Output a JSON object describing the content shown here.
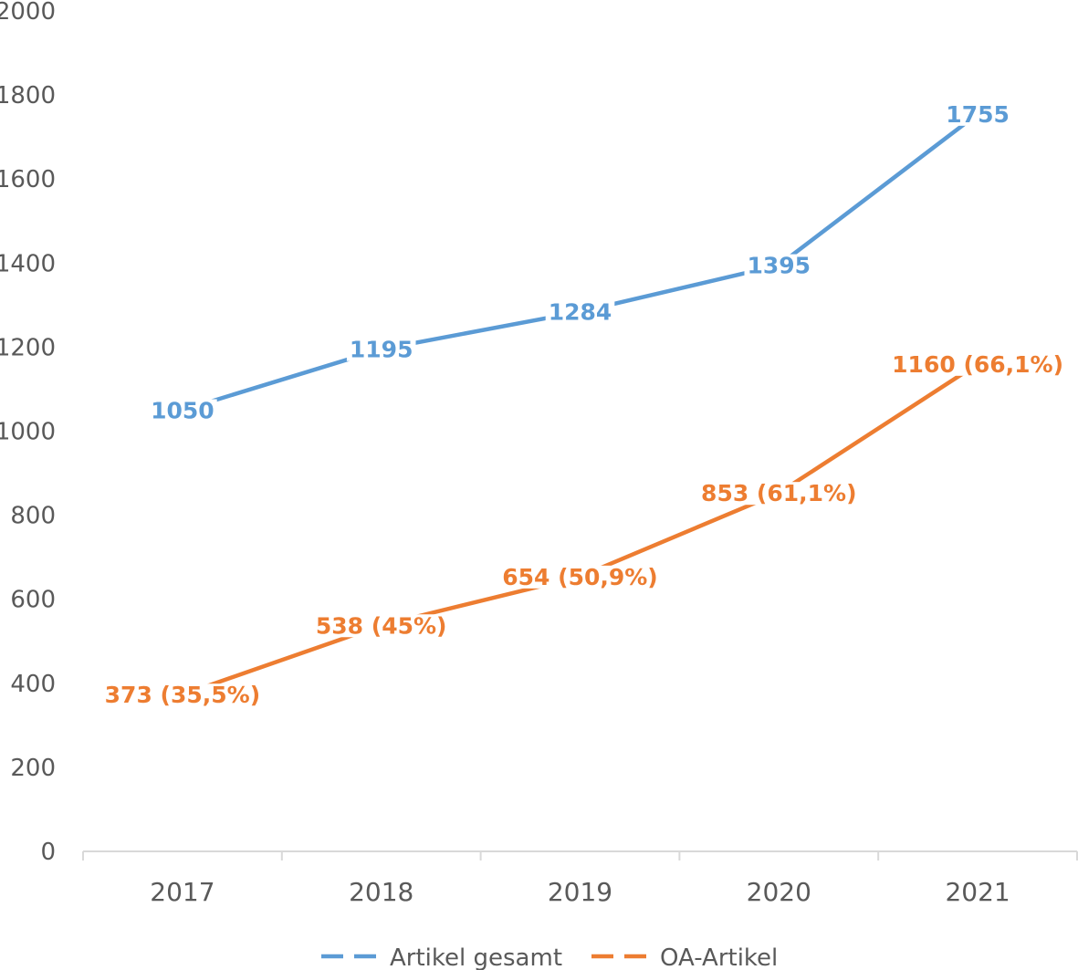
{
  "chart_data": {
    "type": "line",
    "categories": [
      "2017",
      "2018",
      "2019",
      "2020",
      "2021"
    ],
    "ylim": [
      0,
      2000
    ],
    "yticks": [
      "0",
      "200",
      "400",
      "600",
      "800",
      "1000",
      "1200",
      "1400",
      "1600",
      "1800",
      "2000"
    ],
    "grid": false,
    "legend": "bottom",
    "series": [
      {
        "name": "Artikel gesamt",
        "color": "#5b9bd5",
        "values": [
          1050,
          1195,
          1284,
          1395,
          1755
        ],
        "labels": [
          "1050",
          "1195",
          "1284",
          "1395",
          "1755"
        ]
      },
      {
        "name": "OA-Artikel",
        "color": "#ed7d31",
        "values": [
          373,
          538,
          654,
          853,
          1160
        ],
        "labels": [
          "373 (35,5%)",
          "538 (45%)",
          "654 (50,9%)",
          "853 (61,1%)",
          "1160 (66,1%)"
        ]
      }
    ]
  }
}
